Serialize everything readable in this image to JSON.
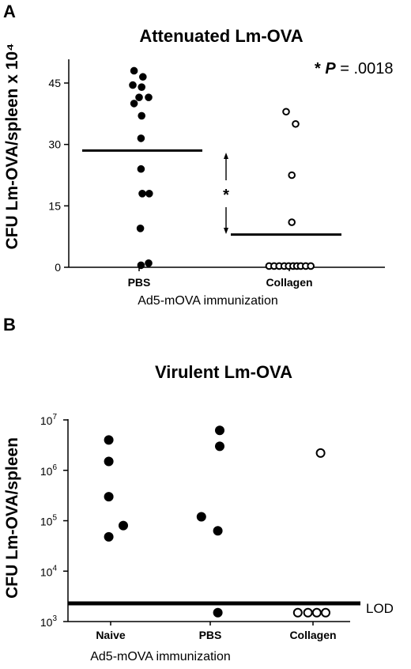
{
  "chart_data": [
    {
      "panel": "A",
      "type": "scatter",
      "title": "Attenuated Lm-OVA",
      "ylabel": "CFU Lm-OVA/spleen x 10⁴",
      "xlabel": "Ad5-mOVA immunization",
      "categories": [
        "PBS",
        "Collagen"
      ],
      "yticks": [
        "0",
        "15",
        "30",
        "45"
      ],
      "ylim": [
        0,
        50
      ],
      "annotation_p_label": "* P = .0018",
      "significance_star": "*",
      "series": [
        {
          "category": "PBS",
          "fill": "#000000",
          "points": [
            {
              "x": -0.08,
              "y": 48
            },
            {
              "x": 0.06,
              "y": 46.5
            },
            {
              "x": -0.1,
              "y": 44.5
            },
            {
              "x": 0.04,
              "y": 44
            },
            {
              "x": -0.08,
              "y": 40
            },
            {
              "x": 0.0,
              "y": 41.5
            },
            {
              "x": 0.15,
              "y": 41.5
            },
            {
              "x": 0.04,
              "y": 37
            },
            {
              "x": 0.03,
              "y": 31.5
            },
            {
              "x": 0.03,
              "y": 24
            },
            {
              "x": 0.05,
              "y": 18
            },
            {
              "x": 0.16,
              "y": 18
            },
            {
              "x": 0.02,
              "y": 9.5
            },
            {
              "x": 0.03,
              "y": 0.5
            },
            {
              "x": 0.15,
              "y": 1
            }
          ],
          "mean": 28.5
        },
        {
          "category": "Collagen",
          "fill": "#ffffff",
          "points": [
            {
              "x": -0.05,
              "y": 38
            },
            {
              "x": 0.1,
              "y": 35
            },
            {
              "x": 0.04,
              "y": 22.5
            },
            {
              "x": 0.04,
              "y": 11
            },
            {
              "x": -0.32,
              "y": 0.3
            },
            {
              "x": -0.24,
              "y": 0.3
            },
            {
              "x": -0.16,
              "y": 0.3
            },
            {
              "x": -0.08,
              "y": 0.3
            },
            {
              "x": -0.01,
              "y": 0.3
            },
            {
              "x": 0.06,
              "y": 0.3
            },
            {
              "x": 0.12,
              "y": 0.3
            },
            {
              "x": 0.18,
              "y": 0.3
            },
            {
              "x": 0.26,
              "y": 0.3
            },
            {
              "x": 0.34,
              "y": 0.3
            }
          ],
          "mean": 8
        }
      ]
    },
    {
      "panel": "B",
      "type": "scatter",
      "title": "Virulent Lm-OVA",
      "ylabel": "CFU Lm-OVA/spleen",
      "xlabel": "Ad5-mOVA immunization",
      "categories": [
        "Naive",
        "PBS",
        "Collagen"
      ],
      "yscale": "log",
      "ylim": [
        1000,
        10000000
      ],
      "yticks": [
        {
          "base": "10",
          "exp": "3"
        },
        {
          "base": "10",
          "exp": "4"
        },
        {
          "base": "10",
          "exp": "5"
        },
        {
          "base": "10",
          "exp": "6"
        },
        {
          "base": "10",
          "exp": "7"
        }
      ],
      "lod_label": "LOD",
      "lod_value": 2300,
      "series": [
        {
          "category": "Naive",
          "fill": "#000000",
          "points": [
            {
              "x": -0.03,
              "y": 4000000
            },
            {
              "x": -0.03,
              "y": 1500000
            },
            {
              "x": -0.03,
              "y": 300000
            },
            {
              "x": 0.2,
              "y": 80000
            },
            {
              "x": -0.03,
              "y": 48000
            }
          ]
        },
        {
          "category": "PBS",
          "fill": "#000000",
          "points": [
            {
              "x": 0.15,
              "y": 6200000
            },
            {
              "x": 0.15,
              "y": 3000000
            },
            {
              "x": -0.14,
              "y": 120000
            },
            {
              "x": 0.12,
              "y": 63000
            },
            {
              "x": 0.12,
              "y": 1500
            }
          ]
        },
        {
          "category": "Collagen",
          "fill": "#ffffff",
          "points": [
            {
              "x": 0.12,
              "y": 2200000
            },
            {
              "x": -0.24,
              "y": 1500
            },
            {
              "x": -0.08,
              "y": 1500
            },
            {
              "x": 0.06,
              "y": 1500
            },
            {
              "x": 0.2,
              "y": 1500
            }
          ]
        }
      ]
    }
  ]
}
